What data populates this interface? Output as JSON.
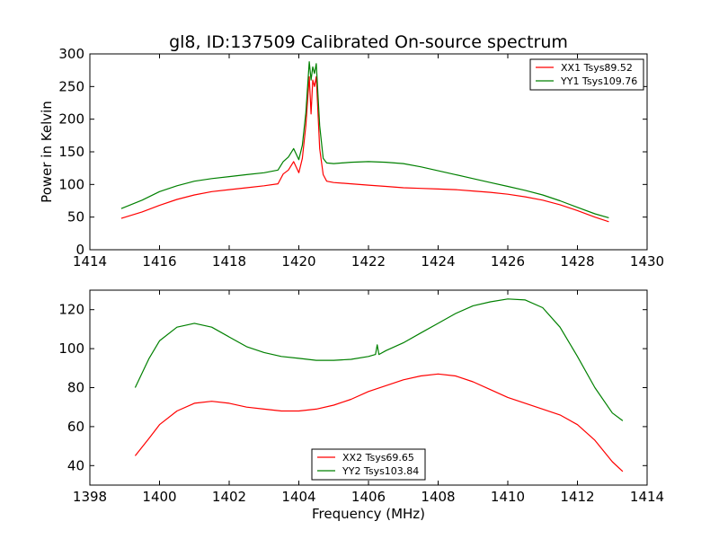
{
  "figure": {
    "title": "gl8, ID:137509 Calibrated On-source spectrum"
  },
  "chart_data": [
    {
      "type": "line",
      "title": "gl8, ID:137509 Calibrated On-source spectrum",
      "xlabel": "",
      "ylabel": "Power in Kelvin",
      "xlim": [
        1414,
        1430
      ],
      "ylim": [
        0,
        300
      ],
      "xticks": [
        1414,
        1416,
        1418,
        1420,
        1422,
        1424,
        1426,
        1428,
        1430
      ],
      "yticks": [
        0,
        50,
        100,
        150,
        200,
        250,
        300
      ],
      "grid": false,
      "legend_position": "top-right",
      "series": [
        {
          "name": "XX1 Tsys89.52",
          "color": "#ff0000",
          "x": [
            1414.9,
            1415.5,
            1416.0,
            1416.5,
            1417.0,
            1417.5,
            1418.0,
            1418.5,
            1419.0,
            1419.4,
            1419.55,
            1419.7,
            1419.85,
            1420.0,
            1420.1,
            1420.2,
            1420.3,
            1420.35,
            1420.4,
            1420.45,
            1420.5,
            1420.6,
            1420.7,
            1420.8,
            1421.0,
            1421.5,
            1422.0,
            1422.5,
            1423.0,
            1423.5,
            1424.0,
            1424.5,
            1425.0,
            1425.5,
            1426.0,
            1426.5,
            1427.0,
            1427.5,
            1428.0,
            1428.5,
            1428.9
          ],
          "y": [
            48,
            58,
            68,
            77,
            84,
            89,
            92,
            95,
            98,
            101,
            116,
            122,
            135,
            118,
            140,
            190,
            265,
            208,
            260,
            250,
            265,
            155,
            115,
            105,
            103,
            101,
            99,
            97,
            95,
            94,
            93,
            92,
            90,
            88,
            85,
            81,
            76,
            69,
            60,
            50,
            43
          ]
        },
        {
          "name": "YY1 Tsys109.76",
          "color": "#008000",
          "x": [
            1414.9,
            1415.5,
            1416.0,
            1416.5,
            1417.0,
            1417.5,
            1418.0,
            1418.5,
            1419.0,
            1419.4,
            1419.55,
            1419.7,
            1419.85,
            1420.0,
            1420.1,
            1420.2,
            1420.3,
            1420.35,
            1420.4,
            1420.45,
            1420.5,
            1420.6,
            1420.7,
            1420.8,
            1421.0,
            1421.5,
            1422.0,
            1422.5,
            1423.0,
            1423.5,
            1424.0,
            1424.5,
            1425.0,
            1425.5,
            1426.0,
            1426.5,
            1427.0,
            1427.5,
            1428.0,
            1428.5,
            1428.9
          ],
          "y": [
            63,
            76,
            89,
            98,
            105,
            109,
            112,
            115,
            118,
            122,
            135,
            142,
            155,
            138,
            160,
            210,
            288,
            260,
            280,
            270,
            285,
            190,
            140,
            133,
            132,
            134,
            135,
            134,
            132,
            127,
            121,
            115,
            109,
            103,
            97,
            91,
            84,
            75,
            65,
            55,
            49
          ]
        }
      ]
    },
    {
      "type": "line",
      "title": "",
      "xlabel": "Frequency (MHz)",
      "ylabel": "",
      "xlim": [
        1398,
        1414
      ],
      "ylim": [
        30,
        130
      ],
      "xticks": [
        1398,
        1400,
        1402,
        1404,
        1406,
        1408,
        1410,
        1412,
        1414
      ],
      "yticks": [
        40,
        60,
        80,
        100,
        120
      ],
      "grid": false,
      "legend_position": "bottom-center",
      "series": [
        {
          "name": "XX2 Tsys69.65",
          "color": "#ff0000",
          "x": [
            1399.3,
            1399.7,
            1400.0,
            1400.5,
            1401.0,
            1401.5,
            1402.0,
            1402.5,
            1403.0,
            1403.5,
            1404.0,
            1404.5,
            1405.0,
            1405.5,
            1406.0,
            1406.5,
            1407.0,
            1407.5,
            1408.0,
            1408.5,
            1409.0,
            1409.5,
            1410.0,
            1410.5,
            1411.0,
            1411.5,
            1412.0,
            1412.5,
            1413.0,
            1413.3
          ],
          "y": [
            45,
            54,
            61,
            68,
            72,
            73,
            72,
            70,
            69,
            68,
            68,
            69,
            71,
            74,
            78,
            81,
            84,
            86,
            87,
            86,
            83,
            79,
            75,
            72,
            69,
            66,
            61,
            53,
            42,
            37
          ]
        },
        {
          "name": "YY2 Tsys103.84",
          "color": "#008000",
          "x": [
            1399.3,
            1399.7,
            1400.0,
            1400.5,
            1401.0,
            1401.5,
            1402.0,
            1402.5,
            1403.0,
            1403.5,
            1404.0,
            1404.5,
            1405.0,
            1405.5,
            1406.0,
            1406.2,
            1406.25,
            1406.3,
            1406.5,
            1407.0,
            1407.5,
            1408.0,
            1408.5,
            1409.0,
            1409.5,
            1410.0,
            1410.5,
            1411.0,
            1411.5,
            1412.0,
            1412.5,
            1413.0,
            1413.3
          ],
          "y": [
            80,
            95,
            104,
            111,
            113,
            111,
            106,
            101,
            98,
            96,
            95,
            94,
            94,
            94.5,
            96,
            97,
            102,
            97,
            99,
            103,
            108,
            113,
            118,
            122,
            124,
            125.5,
            125,
            121,
            111,
            96,
            80,
            67,
            63
          ]
        }
      ]
    }
  ]
}
